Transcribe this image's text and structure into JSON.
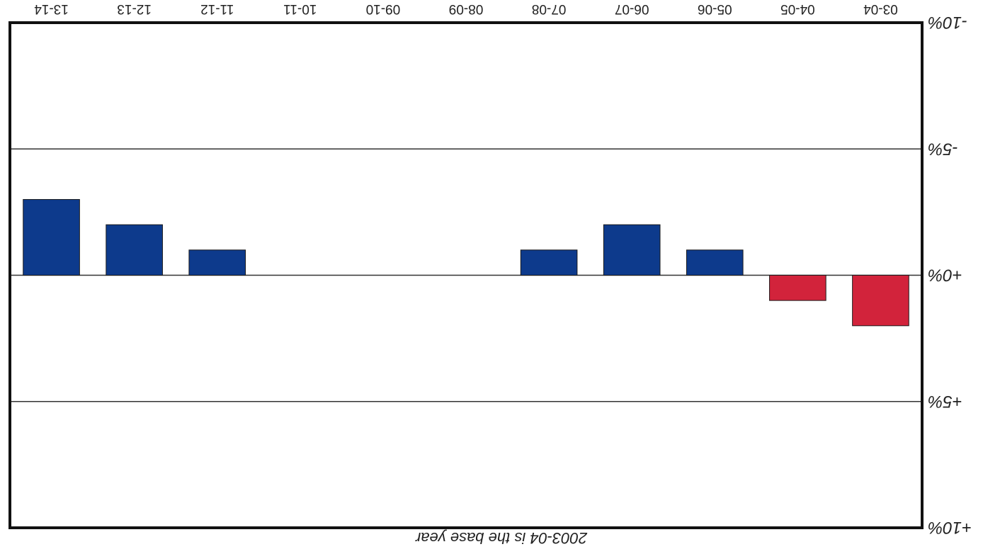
{
  "chart_data": {
    "type": "bar",
    "orientation": "rotated 180 degrees",
    "title": "",
    "xlabel": "",
    "ylabel": "",
    "categories": [
      "03-04",
      "04-05",
      "05-06",
      "06-07",
      "07-08",
      "08-09",
      "09-10",
      "10-11",
      "11-12",
      "12-13",
      "13-14"
    ],
    "values": [
      2.0,
      1.0,
      -1.0,
      -2.0,
      -1.0,
      null,
      null,
      null,
      -1.0,
      -2.0,
      -3.0
    ],
    "ylim": [
      10,
      -10
    ],
    "yticks": [
      {
        "value": -10,
        "label": "-10%"
      },
      {
        "value": -5,
        "label": "-5%"
      },
      {
        "value": 0,
        "label": "+0%"
      },
      {
        "value": 5,
        "label": "+5%"
      },
      {
        "value": 10,
        "label": "+10%"
      }
    ],
    "grid": true,
    "legend": "none",
    "colors": {
      "positive": "#d2233b",
      "negative": "#0d3a8c",
      "frame": "#111111",
      "grid": "#333333"
    },
    "note": "2003-04 is the base year"
  }
}
